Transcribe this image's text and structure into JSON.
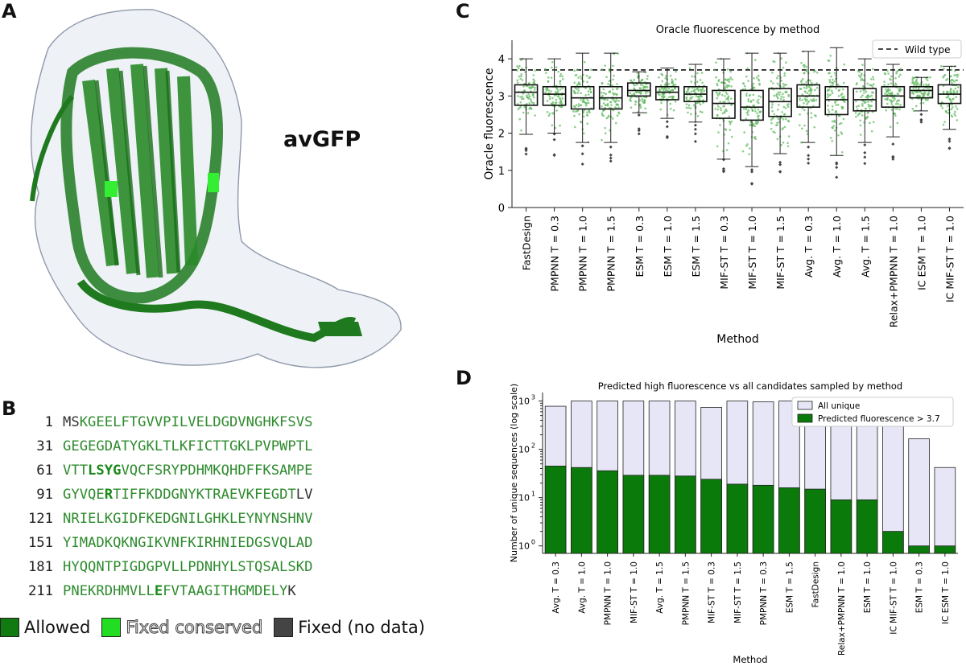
{
  "panels": {
    "A": "A",
    "B": "B",
    "C": "C",
    "D": "D"
  },
  "protein_label": "avGFP",
  "sequence": [
    {
      "num": "1",
      "segments": [
        {
          "t": "MS",
          "c": "fd"
        },
        {
          "t": "KGEELFTGVVPILVELDGDVNGHKFSVS",
          "c": "al"
        }
      ]
    },
    {
      "num": "31",
      "segments": [
        {
          "t": "GEGEGDATYGKLTLKFICTTGKLPVPWPTL",
          "c": "al"
        }
      ]
    },
    {
      "num": "61",
      "segments": [
        {
          "t": "VTT",
          "c": "al"
        },
        {
          "t": "LSYG",
          "c": "fc"
        },
        {
          "t": "VQCFSRYPDHMKQHDFFKSAMPE",
          "c": "al"
        }
      ]
    },
    {
      "num": "91",
      "segments": [
        {
          "t": "GYVQE",
          "c": "al"
        },
        {
          "t": "R",
          "c": "fc"
        },
        {
          "t": "TIFFKDDGNYKTRAEVKFEGDT",
          "c": "al"
        },
        {
          "t": "LV",
          "c": "fd"
        }
      ]
    },
    {
      "num": "121",
      "segments": [
        {
          "t": "NRIELKGIDFKEDGNILGHKLEYNYNSHNV",
          "c": "al"
        }
      ]
    },
    {
      "num": "151",
      "segments": [
        {
          "t": "YIMADKQKNGIKVNFKIRHNIEDGSVQLAD",
          "c": "al"
        }
      ]
    },
    {
      "num": "181",
      "segments": [
        {
          "t": "HYQQNTPIGDGPVLLPDNHYLSTQSALSKD",
          "c": "al"
        }
      ]
    },
    {
      "num": "211",
      "segments": [
        {
          "t": "PNEKRDHMVLL",
          "c": "al"
        },
        {
          "t": "E",
          "c": "fc"
        },
        {
          "t": "FVTAAGITHGMDELY",
          "c": "al"
        },
        {
          "t": "K",
          "c": "fd"
        }
      ]
    }
  ],
  "legend_b": [
    {
      "label": "Allowed",
      "color": "#117a11"
    },
    {
      "label": "Fixed conserved",
      "color": "#22dd22"
    },
    {
      "label": "Fixed (no data)",
      "color": "#444444"
    }
  ],
  "chart_data": [
    {
      "type": "box",
      "title": "Oracle fluorescence by method",
      "xlabel": "Method",
      "ylabel": "Oracle fluorescence",
      "ylim": [
        0,
        4.5
      ],
      "yticks": [
        "0",
        "1",
        "2",
        "3",
        "4"
      ],
      "reference_line": {
        "label": "Wild type",
        "value": 3.7
      },
      "categories": [
        "FastDesign",
        "PMPNN T = 0.3",
        "PMPNN T = 1.0",
        "PMPNN T = 1.5",
        "ESM T = 0.3",
        "ESM T = 1.0",
        "ESM T = 1.5",
        "MIF-ST T = 0.3",
        "MIF-ST T = 1.0",
        "MIF-ST T = 1.5",
        "Avg. T = 0.3",
        "Avg. T = 1.0",
        "Avg. T = 1.5",
        "Relax+PMPNN T = 1.0",
        "IC ESM T = 1.0",
        "IC MIF-ST T = 1.0"
      ],
      "boxes": [
        {
          "q1": 2.75,
          "median": 3.1,
          "q3": 3.3,
          "wlo": 1.97,
          "whi": 4.0
        },
        {
          "q1": 2.75,
          "median": 3.05,
          "q3": 3.25,
          "wlo": 2.0,
          "whi": 4.0
        },
        {
          "q1": 2.65,
          "median": 2.95,
          "q3": 3.25,
          "wlo": 1.75,
          "whi": 4.15
        },
        {
          "q1": 2.65,
          "median": 2.95,
          "q3": 3.25,
          "wlo": 1.75,
          "whi": 4.15
        },
        {
          "q1": 3.0,
          "median": 3.15,
          "q3": 3.35,
          "wlo": 2.55,
          "whi": 3.65
        },
        {
          "q1": 2.9,
          "median": 3.1,
          "q3": 3.25,
          "wlo": 2.4,
          "whi": 3.75
        },
        {
          "q1": 2.85,
          "median": 3.05,
          "q3": 3.25,
          "wlo": 2.3,
          "whi": 3.85
        },
        {
          "q1": 2.4,
          "median": 2.8,
          "q3": 3.15,
          "wlo": 1.3,
          "whi": 4.0
        },
        {
          "q1": 2.35,
          "median": 2.7,
          "q3": 3.15,
          "wlo": 1.1,
          "whi": 4.15
        },
        {
          "q1": 2.45,
          "median": 2.85,
          "q3": 3.2,
          "wlo": 1.45,
          "whi": 4.15
        },
        {
          "q1": 2.7,
          "median": 3.0,
          "q3": 3.3,
          "wlo": 1.75,
          "whi": 4.2
        },
        {
          "q1": 2.5,
          "median": 2.9,
          "q3": 3.25,
          "wlo": 1.4,
          "whi": 4.3
        },
        {
          "q1": 2.6,
          "median": 2.9,
          "q3": 3.2,
          "wlo": 1.75,
          "whi": 4.0
        },
        {
          "q1": 2.7,
          "median": 3.0,
          "q3": 3.25,
          "wlo": 1.9,
          "whi": 3.85
        },
        {
          "q1": 2.95,
          "median": 3.15,
          "q3": 3.25,
          "wlo": 2.6,
          "whi": 3.5
        },
        {
          "q1": 2.8,
          "median": 3.05,
          "q3": 3.3,
          "wlo": 2.1,
          "whi": 3.8
        }
      ],
      "points_color": "#5cb85c",
      "legend_position": "top-right",
      "grid": false
    },
    {
      "type": "bar",
      "title": "Predicted high fluorescence vs all candidates sampled by method",
      "xlabel": "Method",
      "ylabel": "Number of unique sequences (log scale)",
      "yscale": "log",
      "ylim": [
        0.7,
        1500
      ],
      "yticks": [
        1,
        10,
        100,
        1000
      ],
      "yticklabels": [
        "10",
        "10",
        "10",
        "10"
      ],
      "ytickexp": [
        "0",
        "1",
        "2",
        "3"
      ],
      "categories": [
        "Avg. T = 0.3",
        "Avg. T = 1.0",
        "PMPNN T = 1.0",
        "MIF-ST T = 1.0",
        "Avg. T = 1.5",
        "PMPNN T = 1.5",
        "MIF-ST T = 0.3",
        "MIF-ST T = 1.5",
        "PMPNN T = 0.3",
        "ESM T = 1.5",
        "FastDesign",
        "Relax+PMPNN T = 1.0",
        "ESM T = 1.0",
        "IC MIF-ST T = 1.0",
        "ESM T = 0.3",
        "IC ESM T = 1.0"
      ],
      "series": [
        {
          "name": "All unique",
          "color": "#e6e6f7",
          "values": [
            780,
            1000,
            1000,
            1000,
            1000,
            1000,
            740,
            1000,
            960,
            1000,
            1000,
            1000,
            1000,
            1000,
            165,
            42
          ]
        },
        {
          "name": "Predicted fluorescence > 3.7",
          "color": "#0a7a0a",
          "values": [
            45,
            42,
            36,
            29,
            29,
            28,
            24,
            19,
            18,
            16,
            15,
            9,
            9,
            2,
            1,
            1
          ]
        }
      ],
      "legend_position": "top-right",
      "grid": false
    }
  ]
}
